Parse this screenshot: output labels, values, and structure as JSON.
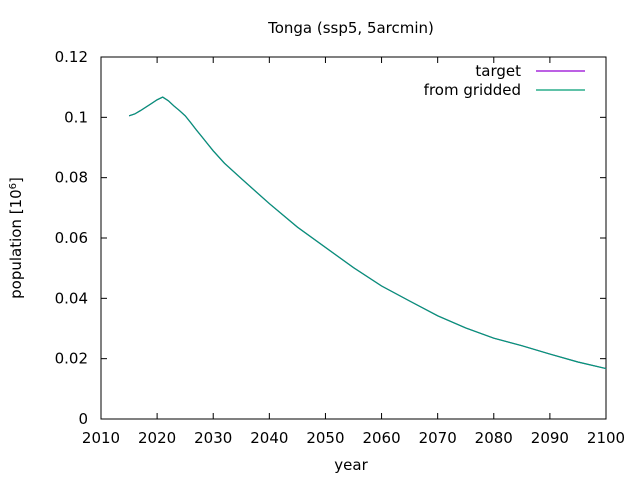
{
  "chart_data": {
    "type": "line",
    "title": "Tonga (ssp5, 5arcmin)",
    "xlabel": "year",
    "ylabel_base": "population [10",
    "ylabel_exp": "6",
    "ylabel_close": "]",
    "xlim": [
      2010,
      2100
    ],
    "ylim": [
      0,
      0.12
    ],
    "xticks": [
      2010,
      2020,
      2030,
      2040,
      2050,
      2060,
      2070,
      2080,
      2090,
      2100
    ],
    "yticks": [
      "0",
      "0.02",
      "0.04",
      "0.06",
      "0.08",
      "0.1",
      "0.12"
    ],
    "legend_position": "top-right",
    "grid": false,
    "series": [
      {
        "name": "target",
        "color": "#9400d3",
        "x": [
          2015,
          2016,
          2017,
          2018,
          2019,
          2020,
          2021,
          2022,
          2023,
          2024,
          2025,
          2026,
          2027,
          2028,
          2029,
          2030,
          2032,
          2035,
          2040,
          2045,
          2050,
          2055,
          2060,
          2065,
          2070,
          2075,
          2080,
          2085,
          2090,
          2095,
          2100
        ],
        "values": [
          0.1005,
          0.1011,
          0.1022,
          0.1034,
          0.1046,
          0.1058,
          0.1067,
          0.1055,
          0.1038,
          0.1022,
          0.1005,
          0.0982,
          0.0958,
          0.0935,
          0.0912,
          0.0889,
          0.0848,
          0.0797,
          0.0714,
          0.0636,
          0.0569,
          0.0502,
          0.0441,
          0.0391,
          0.0342,
          0.0302,
          0.0268,
          0.0243,
          0.0215,
          0.0189,
          0.0167
        ]
      },
      {
        "name": "from gridded",
        "color": "#009e73",
        "x": [
          2015,
          2016,
          2017,
          2018,
          2019,
          2020,
          2021,
          2022,
          2023,
          2024,
          2025,
          2026,
          2027,
          2028,
          2029,
          2030,
          2032,
          2035,
          2040,
          2045,
          2050,
          2055,
          2060,
          2065,
          2070,
          2075,
          2080,
          2085,
          2090,
          2095,
          2100
        ],
        "values": [
          0.1005,
          0.1011,
          0.1022,
          0.1034,
          0.1046,
          0.1058,
          0.1067,
          0.1055,
          0.1038,
          0.1022,
          0.1005,
          0.0982,
          0.0958,
          0.0935,
          0.0912,
          0.0889,
          0.0848,
          0.0797,
          0.0714,
          0.0636,
          0.0569,
          0.0502,
          0.0441,
          0.0391,
          0.0342,
          0.0302,
          0.0268,
          0.0243,
          0.0215,
          0.0189,
          0.0167
        ]
      }
    ]
  }
}
